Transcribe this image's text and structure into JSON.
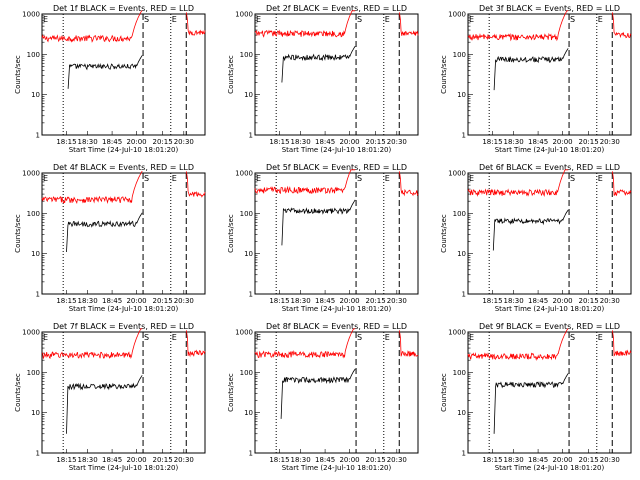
{
  "charts": [
    {
      "title": "Det 1f BLACK = Events, RED = LLD",
      "events_level": 50,
      "lld_level": 250,
      "events_start_x": 0.16,
      "events_low": 14,
      "lld_tail": 350
    },
    {
      "title": "Det 2f BLACK = Events, RED = LLD",
      "events_level": 85,
      "lld_level": 330,
      "events_start_x": 0.165,
      "events_low": 20,
      "lld_tail": 320
    },
    {
      "title": "Det 3f BLACK = Events, RED = LLD",
      "events_level": 75,
      "lld_level": 270,
      "events_start_x": 0.16,
      "events_low": 13,
      "lld_tail": 300
    },
    {
      "title": "Det 4f BLACK = Events, RED = LLD",
      "events_level": 55,
      "lld_level": 220,
      "events_start_x": 0.15,
      "events_low": 11,
      "lld_tail": 300
    },
    {
      "title": "Det 5f BLACK = Events, RED = LLD",
      "events_level": 115,
      "lld_level": 380,
      "events_start_x": 0.165,
      "events_low": 16,
      "lld_tail": 330
    },
    {
      "title": "Det 6f BLACK = Events, RED = LLD",
      "events_level": 65,
      "lld_level": 330,
      "events_start_x": 0.155,
      "events_low": 12,
      "lld_tail": 330
    },
    {
      "title": "Det 7f BLACK = Events, RED = LLD",
      "events_level": 45,
      "lld_level": 270,
      "events_start_x": 0.15,
      "events_low": 3,
      "lld_tail": 300
    },
    {
      "title": "Det 8f BLACK = Events, RED = LLD",
      "events_level": 65,
      "lld_level": 280,
      "events_start_x": 0.16,
      "events_low": 7,
      "lld_tail": 290
    },
    {
      "title": "Det 9f BLACK = Events, RED = LLD",
      "events_level": 50,
      "lld_level": 250,
      "events_start_x": 0.16,
      "events_low": 3,
      "lld_tail": 300
    }
  ],
  "chart_data": {
    "type": "line",
    "series": [
      {
        "name": "BLACK = Events",
        "color": "#000000"
      },
      {
        "name": "RED = LLD",
        "color": "#ff0000"
      }
    ],
    "xlabel": "Start Time (24-Jul-10 18:01:20)",
    "ylabel": "Counts/sec",
    "x_ticks": [
      "18:15",
      "18:30",
      "18:45",
      "20:00",
      "20:15",
      "20:30"
    ],
    "y_ticks": [
      "1",
      "10",
      "100",
      "1000"
    ],
    "yscale": "log",
    "ylim": [
      1,
      1000
    ],
    "markers": [
      {
        "label": "E",
        "x": 0.0,
        "style": "solid"
      },
      {
        "label": "S",
        "x": 0.62,
        "style": "dashed"
      },
      {
        "label": "E",
        "x": 0.79,
        "style": "dotted"
      },
      {
        "label": "",
        "x": 0.885,
        "style": "dashed"
      },
      {
        "label": "",
        "x": 0.13,
        "style": "dotted"
      }
    ]
  }
}
